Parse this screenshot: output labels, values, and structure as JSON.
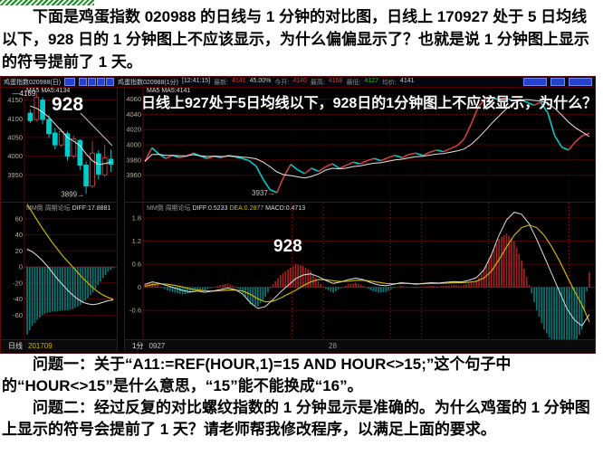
{
  "page": {
    "para_top": "下面是鸡蛋指数 020988 的日线与 1 分钟的对比图，日线上 170927 处于 5 日均线以下，928 日的 1 分钟图上不应该显示，为什么偏偏显示了？也就是说 1 分钟图上显示的符号提前了 1 天。",
    "para_q1": "问题一：关于“A11:=REF(HOUR,1)=15 AND HOUR<>15;”这个句子中的“HOUR<>15”是什么意思，“15”能不能换成“16”。",
    "para_q2": "问题二：经过反复的对比螺纹指数的 1 分钟显示是准确的。为什么鸡蛋的 1 分钟图上显示的符号会提前了 1 天？请老师帮我修改程序，以满足上面的要求。"
  },
  "chart_data": {
    "type": "candlestick+macd comparison (daily vs 1-minute)",
    "colors": {
      "up": "#cf4040",
      "down": "#00cccc",
      "ma_white": "#e6e6e6",
      "dea_yellow": "#c9b500",
      "grid": "#4a0505",
      "panel_border": "#5c0a0a",
      "bg": "#000000",
      "bar_up": "#9c2222",
      "bar_down": "#0d7474"
    },
    "left_panel": {
      "title": "鸡蛋指数020988(日)",
      "ma_label": "MA5 MA5:4134",
      "y_ticks": [
        4150,
        4100,
        4050,
        4000,
        3950
      ],
      "y_range": [
        3878,
        4183
      ],
      "annotations": {
        "high": "4169",
        "big": "928",
        "low": "3899"
      },
      "candles_ohlc": [
        [
          4115,
          4125,
          4088,
          4095
        ],
        [
          4098,
          4169,
          4092,
          4158
        ],
        [
          4150,
          4158,
          4085,
          4098
        ],
        [
          4098,
          4110,
          4048,
          4060
        ],
        [
          4062,
          4075,
          4018,
          4030
        ],
        [
          4030,
          4076,
          4024,
          4066
        ],
        [
          4060,
          4066,
          3988,
          4000
        ],
        [
          4000,
          4055,
          3994,
          4046
        ],
        [
          4042,
          4046,
          3962,
          3976
        ],
        [
          3976,
          3986,
          3899,
          3920
        ],
        [
          3920,
          4040,
          3914,
          4008
        ],
        [
          4006,
          4016,
          3938,
          3952
        ],
        [
          3950,
          4030,
          3944,
          3996
        ],
        [
          3992,
          4018,
          3958,
          3978
        ]
      ],
      "ma5": [
        4134,
        4128,
        4118,
        4104,
        4086,
        4068,
        4050,
        4040,
        4028,
        4006,
        3988,
        3978,
        3980,
        3984
      ],
      "macd": {
        "header": "MM倒 周期论坛",
        "diff_label": "DIFF:17.8881",
        "y_ticks": [
          60,
          40,
          20,
          0,
          -20,
          -40,
          -60
        ],
        "y_range": [
          -90,
          80
        ],
        "bar_scale": 1.5,
        "dea": [
          78,
          68,
          58,
          48,
          39,
          30,
          22,
          14,
          7,
          0,
          -7,
          -14,
          -20,
          -26,
          -31,
          -35,
          -38,
          -40
        ],
        "diff": [
          22,
          19,
          14,
          8,
          1,
          -7,
          -15,
          -22,
          -29,
          -35,
          -40,
          -44,
          -46,
          -47,
          -46,
          -44,
          -42,
          -41
        ]
      },
      "axis": {
        "period": "日线",
        "date": "201709"
      }
    },
    "right_panel": {
      "title": "鸡蛋指数020988(1分)",
      "info": {
        "time": "[12:41:15]",
        "last_label": "最新:",
        "last": "4141",
        "pct": "45.00%",
        "open_label": "今开:",
        "open": "4140",
        "high_label": "最高:",
        "high": "4168",
        "low_label": "最低:",
        "low": "4127",
        "avg_label": "均价:",
        "avg": "4141"
      },
      "ma_label": "MA5 MA5:4141",
      "overlay_question": "日线上927处于5日均线以下，928日的1分钟图上不应该显示，为什么？",
      "y_ticks": [
        4060,
        4040,
        4020,
        4000,
        3980,
        3960
      ],
      "y_range": [
        3925,
        4075
      ],
      "annotations": {
        "low": "3937",
        "big": "928"
      },
      "price": [
        3978,
        3996,
        3988,
        3982,
        3986,
        3983,
        3985,
        3989,
        3985,
        3982,
        3985,
        3983,
        3986,
        3984,
        3982,
        3979,
        3972,
        3955,
        3941,
        3937,
        3958,
        3974,
        3967,
        3962,
        3969,
        3965,
        3971,
        3975,
        3969,
        3973,
        3977,
        3975,
        3979,
        3982,
        3979,
        3983,
        3986,
        3983,
        3987,
        3989,
        3986,
        3990,
        3993,
        3991,
        3995,
        3999,
        4008,
        4028,
        4050,
        4060,
        4062,
        4059,
        4061,
        4058,
        4060,
        4056,
        4052,
        4056,
        4042,
        4012,
        3997,
        3993,
        4004,
        4012,
        4015
      ],
      "macd": {
        "header": "MM倒 周期论坛",
        "diff_label": "DIFF:0.5233",
        "dea_label": "DEA:0.2877",
        "macd_label": "MACD:0.4713",
        "y_ticks": [
          1.8,
          1.2,
          0.6,
          0,
          -0.6
        ],
        "y_range": [
          -1.35,
          2.2
        ],
        "bar_scale": 2,
        "separators": [
          0.33,
          0.4,
          0.55,
          0.62,
          0.77,
          0.95
        ],
        "diff": [
          0.08,
          0.14,
          0.1,
          0.04,
          -0.02,
          -0.08,
          -0.12,
          -0.1,
          -0.13,
          -0.1,
          -0.06,
          -0.02,
          -0.06,
          -0.18,
          -0.4,
          -0.55,
          -0.5,
          -0.32,
          -0.12,
          0.05,
          0.22,
          0.32,
          0.35,
          0.28,
          0.18,
          0.1,
          0.14,
          0.2,
          0.24,
          0.2,
          0.12,
          0.06,
          0.04,
          0.08,
          0.12,
          0.1,
          0.08,
          0.1,
          0.12,
          0.11,
          0.13,
          0.15,
          0.14,
          0.18,
          0.25,
          0.45,
          0.85,
          1.35,
          1.75,
          1.95,
          1.9,
          1.65,
          1.25,
          0.8,
          0.35,
          -0.1,
          -0.55,
          -0.85,
          -1.0,
          -0.7
        ],
        "dea": [
          0.03,
          0.07,
          0.09,
          0.08,
          0.05,
          0.01,
          -0.04,
          -0.07,
          -0.09,
          -0.1,
          -0.09,
          -0.07,
          -0.07,
          -0.1,
          -0.18,
          -0.3,
          -0.38,
          -0.36,
          -0.28,
          -0.18,
          -0.08,
          0.04,
          0.14,
          0.2,
          0.2,
          0.17,
          0.15,
          0.16,
          0.18,
          0.18,
          0.16,
          0.13,
          0.1,
          0.09,
          0.1,
          0.1,
          0.09,
          0.09,
          0.1,
          0.1,
          0.11,
          0.12,
          0.12,
          0.13,
          0.16,
          0.24,
          0.42,
          0.72,
          1.05,
          1.35,
          1.55,
          1.62,
          1.55,
          1.35,
          1.05,
          0.7,
          0.3,
          -0.1,
          -0.45,
          -0.9
        ]
      },
      "axis": {
        "period": "1分",
        "date": "0927",
        "mid": "28"
      }
    }
  }
}
